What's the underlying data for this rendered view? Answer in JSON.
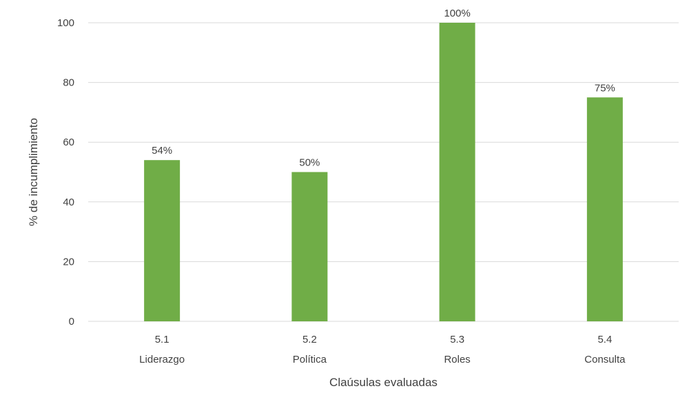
{
  "chart_data": {
    "type": "bar",
    "categories": [
      {
        "code": "5.1",
        "name": "Liderazgo"
      },
      {
        "code": "5.2",
        "name": "Política"
      },
      {
        "code": "5.3",
        "name": "Roles"
      },
      {
        "code": "5.4",
        "name": "Consulta"
      }
    ],
    "values": [
      54,
      50,
      100,
      75
    ],
    "data_labels": [
      "54%",
      "50%",
      "100%",
      "75%"
    ],
    "xlabel": "Claúsulas evaluadas",
    "ylabel": "% de incumplimiento",
    "ylim": [
      0,
      100
    ],
    "yticks": [
      0,
      20,
      40,
      60,
      80,
      100
    ],
    "grid": true,
    "legend": "none",
    "colors": {
      "bar": "#70AD47",
      "grid": "#D9D9D9",
      "text": "#404040"
    }
  }
}
